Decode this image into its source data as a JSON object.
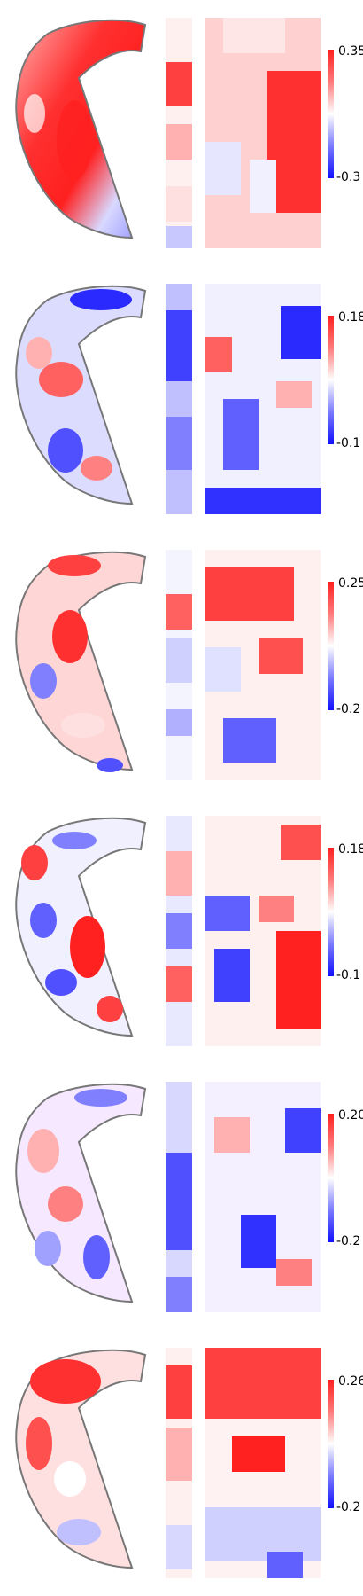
{
  "colors": {
    "positive": "#ff1a1a",
    "neutral": "#ffffff",
    "negative": "#1a1aff"
  },
  "panels": [
    {
      "max_label": "0.35",
      "min_label": "-0.3",
      "shape_tone": "mostly-red",
      "strip_tone": "mixed",
      "map_tone": "red-right"
    },
    {
      "max_label": "0.18",
      "min_label": "-0.1",
      "shape_tone": "blue-red-mixed",
      "strip_tone": "blue",
      "map_tone": "blue-mixed"
    },
    {
      "max_label": "0.25",
      "min_label": "-0.2",
      "shape_tone": "red-mixed",
      "strip_tone": "light",
      "map_tone": "red-top"
    },
    {
      "max_label": "0.18",
      "min_label": "-0.1",
      "shape_tone": "red-blue-mixed",
      "strip_tone": "mixed",
      "map_tone": "red-blue"
    },
    {
      "max_label": "0.20",
      "min_label": "-0.2",
      "shape_tone": "light-mixed",
      "strip_tone": "blue",
      "map_tone": "blue-center"
    },
    {
      "max_label": "0.26",
      "min_label": "-0.2",
      "shape_tone": "red-top",
      "strip_tone": "red-top",
      "map_tone": "red-top"
    }
  ]
}
